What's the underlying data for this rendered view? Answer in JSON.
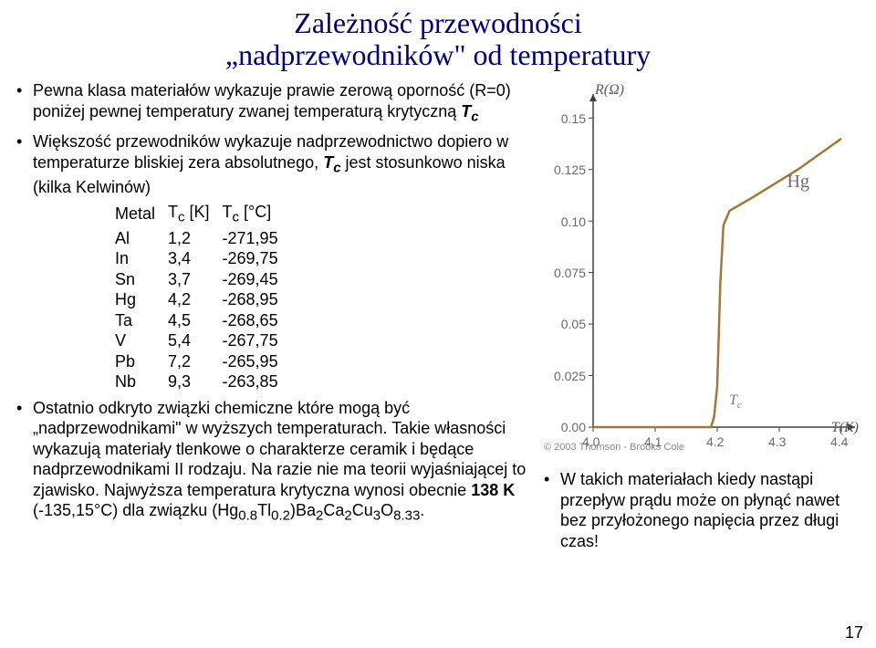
{
  "title_line1": "Zależność przewodności",
  "title_line2": "„nadprzewodników\" od temperatury",
  "bullets": {
    "b1": "Pewna klasa materiałów wykazuje prawie zerową oporność (R=0) poniżej pewnej temperatury zwanej temperaturą krytyczną ",
    "b1_tc": "T",
    "b1_tc_sub": "c",
    "b2a": "Większość przewodników wykazuje nadprzewodnictwo dopiero w temperaturze bliskiej zera absolutnego, ",
    "b2_tc": "T",
    "b2_tc_sub": "c",
    "b2b": " jest stosunkowo niska (kilka Kelwinów)",
    "b3a": "Ostatnio odkryto związki chemiczne które mogą być „nadprzewodnikami\" w wyższych temperaturach. Takie własności wykazują materiały tlenkowe o charakterze ceramik i będące nadprzewodnikami II rodzaju. Na razie nie ma teorii wyjaśniającej to zjawisko. Najwyższa temperatura krytyczna wynosi obecnie ",
    "b3_bold": "138 K",
    "b3b": " (-135,15°C) dla związku (Hg",
    "b3_s1": "0.8",
    "b3c": "Tl",
    "b3_s2": "0.2",
    "b3d": ")Ba",
    "b3_s3": "2",
    "b3e": "Ca",
    "b3_s4": "2",
    "b3f": "Cu",
    "b3_s5": "3",
    "b3g": "O",
    "b3_s6": "8.33",
    "b3h": "."
  },
  "table": {
    "h1": "Metal",
    "h2": "T",
    "h2s": "c",
    "h2u": " [K]",
    "h3": "T",
    "h3s": "c",
    "h3u": " [°C]",
    "rows": [
      [
        "Al",
        "1,2",
        "-271,95"
      ],
      [
        "In",
        "3,4",
        "-269,75"
      ],
      [
        "Sn",
        "3,7",
        "-269,45"
      ],
      [
        "Hg",
        "4,2",
        "-268,95"
      ],
      [
        "Ta",
        "4,5",
        "-268,65"
      ],
      [
        "V",
        "5,4",
        "-267,75"
      ],
      [
        "Pb",
        "7,2",
        "-265,95"
      ],
      [
        "Nb",
        "9,3",
        "-263,85"
      ]
    ]
  },
  "chart": {
    "y_label": "R(Ω)",
    "x_label": "T(K)",
    "hg_label": "Hg",
    "tc_label": "T",
    "tc_sub": "c",
    "y_ticks": [
      "0.00",
      "0.025",
      "0.05",
      "0.075",
      "0.10",
      "0.125",
      "0.15"
    ],
    "x_ticks": [
      "4.0",
      "4.1",
      "4.2",
      "4.3",
      "4.4"
    ],
    "copyright": "© 2003 Thomson - Brooks Cole",
    "line_color": "#a07838",
    "axis_color": "#404040",
    "xlim": [
      4.0,
      4.4
    ],
    "ylim": [
      0.0,
      0.155
    ],
    "tc_value": 4.2,
    "points": [
      [
        4.0,
        0.0
      ],
      [
        4.1,
        0.0
      ],
      [
        4.18,
        0.0
      ],
      [
        4.19,
        0.0
      ],
      [
        4.195,
        0.005
      ],
      [
        4.2,
        0.02
      ],
      [
        4.205,
        0.07
      ],
      [
        4.21,
        0.098
      ],
      [
        4.22,
        0.105
      ],
      [
        4.26,
        0.112
      ],
      [
        4.33,
        0.125
      ],
      [
        4.4,
        0.14
      ]
    ]
  },
  "right_text": "W takich materiałach kiedy nastąpi przepływ prądu może on płynąć nawet bez przyłożonego napięcia przez długi czas!",
  "page_num": "17"
}
